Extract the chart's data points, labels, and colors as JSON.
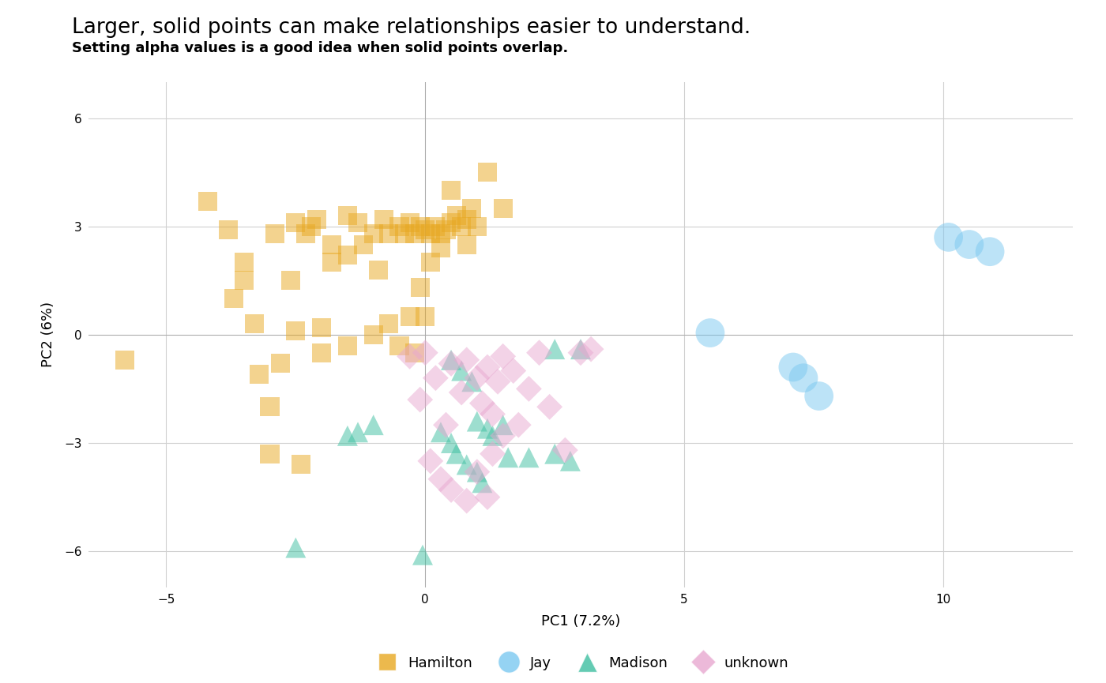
{
  "title": "Larger, solid points can make relationships easier to understand.",
  "subtitle": "Setting alpha values is a good idea when solid points overlap.",
  "xlabel": "PC1 (7.2%)",
  "ylabel": "PC2 (6%)",
  "xlim": [
    -6.5,
    12.5
  ],
  "ylim": [
    -7,
    7
  ],
  "xticks": [
    -5,
    0,
    5,
    10
  ],
  "yticks": [
    -6,
    -3,
    0,
    3,
    6
  ],
  "background_color": "#ffffff",
  "grid_color": "#d0d0d0",
  "title_fontsize": 19,
  "subtitle_fontsize": 13,
  "axis_label_fontsize": 13,
  "tick_fontsize": 11,
  "legend_fontsize": 13,
  "hamilton_color": "#E8A820",
  "jay_color": "#7BC8F0",
  "madison_color": "#3DBFA0",
  "unknown_color": "#E8A8D0",
  "alpha": 0.5,
  "hamilton_size": 300,
  "jay_size": 700,
  "madison_size": 350,
  "unknown_size": 280,
  "hamilton_points": [
    [
      -5.8,
      -0.7
    ],
    [
      -4.2,
      3.7
    ],
    [
      -3.8,
      2.9
    ],
    [
      -3.5,
      1.5
    ],
    [
      -3.3,
      0.3
    ],
    [
      -3.2,
      -1.1
    ],
    [
      -3.0,
      -2.0
    ],
    [
      -3.0,
      -3.3
    ],
    [
      -2.9,
      2.8
    ],
    [
      -2.8,
      -0.8
    ],
    [
      -2.6,
      1.5
    ],
    [
      -2.5,
      0.1
    ],
    [
      -2.4,
      -3.6
    ],
    [
      -2.3,
      2.8
    ],
    [
      -2.1,
      3.2
    ],
    [
      -2.0,
      0.2
    ],
    [
      -1.8,
      2.5
    ],
    [
      -1.5,
      3.3
    ],
    [
      -1.3,
      3.1
    ],
    [
      -1.2,
      2.5
    ],
    [
      -1.0,
      2.8
    ],
    [
      -0.9,
      1.8
    ],
    [
      -0.8,
      3.2
    ],
    [
      -0.7,
      2.8
    ],
    [
      -0.5,
      3.0
    ],
    [
      -0.4,
      2.8
    ],
    [
      -0.3,
      3.1
    ],
    [
      -0.2,
      2.8
    ],
    [
      -0.1,
      3.0
    ],
    [
      0.0,
      2.9
    ],
    [
      0.1,
      2.8
    ],
    [
      0.2,
      3.0
    ],
    [
      0.3,
      2.8
    ],
    [
      0.4,
      2.9
    ],
    [
      0.5,
      3.1
    ],
    [
      0.6,
      3.3
    ],
    [
      0.7,
      3.0
    ],
    [
      0.8,
      3.2
    ],
    [
      0.9,
      3.5
    ],
    [
      1.0,
      3.0
    ],
    [
      1.2,
      4.5
    ],
    [
      1.5,
      3.5
    ],
    [
      -0.1,
      1.3
    ],
    [
      -0.3,
      0.5
    ],
    [
      0.0,
      0.5
    ],
    [
      -0.5,
      -0.3
    ],
    [
      -0.2,
      -0.5
    ],
    [
      0.5,
      4.0
    ],
    [
      0.3,
      2.4
    ],
    [
      -1.5,
      2.2
    ],
    [
      -1.8,
      2.0
    ],
    [
      -3.5,
      2.0
    ],
    [
      -3.7,
      1.0
    ],
    [
      -2.5,
      3.1
    ],
    [
      -2.2,
      3.0
    ],
    [
      0.8,
      2.5
    ],
    [
      0.1,
      2.0
    ],
    [
      -0.7,
      0.3
    ],
    [
      -1.0,
      0.0
    ],
    [
      -1.5,
      -0.3
    ],
    [
      -2.0,
      -0.5
    ]
  ],
  "jay_points": [
    [
      5.5,
      0.05
    ],
    [
      7.1,
      -0.9
    ],
    [
      7.3,
      -1.2
    ],
    [
      7.6,
      -1.7
    ],
    [
      10.1,
      2.7
    ],
    [
      10.5,
      2.5
    ],
    [
      10.9,
      2.3
    ]
  ],
  "madison_points": [
    [
      -2.5,
      -5.9
    ],
    [
      -1.5,
      -2.8
    ],
    [
      -1.3,
      -2.7
    ],
    [
      -1.0,
      -2.5
    ],
    [
      -0.05,
      -6.1
    ],
    [
      0.5,
      -0.7
    ],
    [
      0.7,
      -1.0
    ],
    [
      0.9,
      -1.3
    ],
    [
      1.0,
      -2.4
    ],
    [
      1.2,
      -2.6
    ],
    [
      1.3,
      -2.8
    ],
    [
      1.5,
      -2.5
    ],
    [
      1.6,
      -3.4
    ],
    [
      2.0,
      -3.4
    ],
    [
      2.5,
      -3.3
    ],
    [
      2.8,
      -3.5
    ],
    [
      3.0,
      -0.4
    ],
    [
      0.3,
      -2.7
    ],
    [
      0.5,
      -3.0
    ],
    [
      0.6,
      -3.3
    ],
    [
      0.8,
      -3.6
    ],
    [
      1.0,
      -3.8
    ],
    [
      1.1,
      -4.1
    ],
    [
      2.5,
      -0.4
    ]
  ],
  "unknown_points": [
    [
      -0.3,
      -0.6
    ],
    [
      -0.1,
      -1.8
    ],
    [
      0.0,
      -0.5
    ],
    [
      0.2,
      -1.2
    ],
    [
      0.4,
      -2.5
    ],
    [
      0.5,
      -0.8
    ],
    [
      0.7,
      -1.6
    ],
    [
      0.8,
      -0.7
    ],
    [
      1.0,
      -1.2
    ],
    [
      1.1,
      -1.9
    ],
    [
      1.2,
      -0.9
    ],
    [
      1.3,
      -2.2
    ],
    [
      1.4,
      -1.3
    ],
    [
      1.5,
      -0.6
    ],
    [
      1.7,
      -1.0
    ],
    [
      1.8,
      -2.5
    ],
    [
      2.0,
      -1.5
    ],
    [
      2.2,
      -0.5
    ],
    [
      2.4,
      -2.0
    ],
    [
      2.7,
      -3.2
    ],
    [
      3.0,
      -0.5
    ],
    [
      3.2,
      -0.4
    ],
    [
      0.1,
      -3.5
    ],
    [
      0.3,
      -4.0
    ],
    [
      0.5,
      -4.3
    ],
    [
      0.8,
      -4.6
    ],
    [
      1.0,
      -3.8
    ],
    [
      1.2,
      -4.5
    ],
    [
      1.3,
      -3.3
    ],
    [
      1.5,
      -2.8
    ]
  ]
}
